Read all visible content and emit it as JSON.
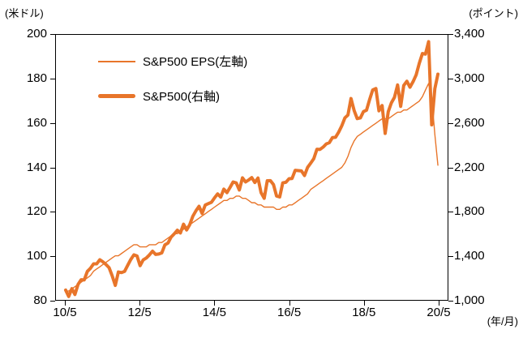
{
  "chart_data": {
    "type": "line",
    "title": "",
    "grid": false,
    "legend_position": "top-left-inside",
    "left_axis": {
      "label": "(米ドル)",
      "min": 80,
      "max": 200,
      "ticks": [
        "200",
        "180",
        "160",
        "140",
        "120",
        "100",
        "80"
      ]
    },
    "right_axis": {
      "label": "(ポイント)",
      "min": 1000,
      "max": 3400,
      "ticks": [
        "3,400",
        "3,000",
        "2,600",
        "2,200",
        "1,800",
        "1,400",
        "1,000"
      ]
    },
    "x_axis": {
      "label": "(年/月)",
      "start": "2010/5",
      "end": "2020/5",
      "interval": "monthly",
      "tick_labels": [
        "10/5",
        "12/5",
        "14/5",
        "16/5",
        "18/5",
        "20/5"
      ],
      "tick_month_index": [
        0,
        24,
        48,
        72,
        96,
        120
      ],
      "total_months": 120
    },
    "series": [
      {
        "name": "S&P500 EPS(左軸)",
        "axis": "left",
        "style": "thin",
        "color": "#E8752A",
        "values": [
          84,
          84,
          85,
          86,
          87,
          88,
          89,
          90,
          91,
          93,
          94,
          95,
          96,
          97,
          98,
          99,
          100,
          100,
          101,
          102,
          103,
          104,
          105,
          105,
          104,
          104,
          104,
          105,
          105,
          105,
          106,
          106,
          107,
          108,
          109,
          110,
          110,
          111,
          112,
          113,
          114,
          115,
          116,
          117,
          118,
          119,
          120,
          121,
          122,
          123,
          124,
          125,
          125,
          126,
          126,
          127,
          127,
          126,
          126,
          125,
          124,
          124,
          123,
          123,
          122,
          122,
          122,
          122,
          121,
          121,
          122,
          122,
          123,
          123,
          124,
          125,
          126,
          127,
          128,
          130,
          131,
          132,
          133,
          134,
          135,
          136,
          137,
          138,
          139,
          140,
          142,
          145,
          149,
          152,
          154,
          155,
          156,
          157,
          158,
          159,
          160,
          161,
          162,
          162,
          162,
          163,
          164,
          165,
          165,
          166,
          166,
          167,
          168,
          169,
          170,
          172,
          175,
          178,
          172,
          155,
          141
        ]
      },
      {
        "name": "S&P500(右軸)",
        "axis": "right",
        "style": "thick",
        "color": "#E8752A",
        "values": [
          1089,
          1031,
          1102,
          1049,
          1141,
          1183,
          1181,
          1258,
          1286,
          1327,
          1326,
          1364,
          1345,
          1321,
          1292,
          1219,
          1131,
          1253,
          1247,
          1258,
          1312,
          1366,
          1408,
          1398,
          1310,
          1362,
          1379,
          1407,
          1441,
          1412,
          1416,
          1426,
          1498,
          1515,
          1569,
          1598,
          1631,
          1606,
          1686,
          1633,
          1682,
          1757,
          1806,
          1848,
          1783,
          1859,
          1872,
          1884,
          1924,
          1960,
          1931,
          2003,
          1972,
          2018,
          2068,
          2059,
          1995,
          2105,
          2068,
          2086,
          2107,
          2063,
          2104,
          1972,
          1920,
          2079,
          2080,
          2044,
          1940,
          1932,
          2060,
          2065,
          2097,
          2099,
          2174,
          2171,
          2168,
          2126,
          2199,
          2239,
          2279,
          2364,
          2363,
          2384,
          2412,
          2423,
          2470,
          2472,
          2519,
          2575,
          2648,
          2674,
          2824,
          2714,
          2641,
          2648,
          2705,
          2718,
          2816,
          2902,
          2914,
          2712,
          2760,
          2507,
          2704,
          2784,
          2834,
          2946,
          2752,
          2942,
          2980,
          2926,
          2977,
          3038,
          3141,
          3231,
          3226,
          3338,
          2585,
          2912,
          3044
        ]
      }
    ]
  }
}
